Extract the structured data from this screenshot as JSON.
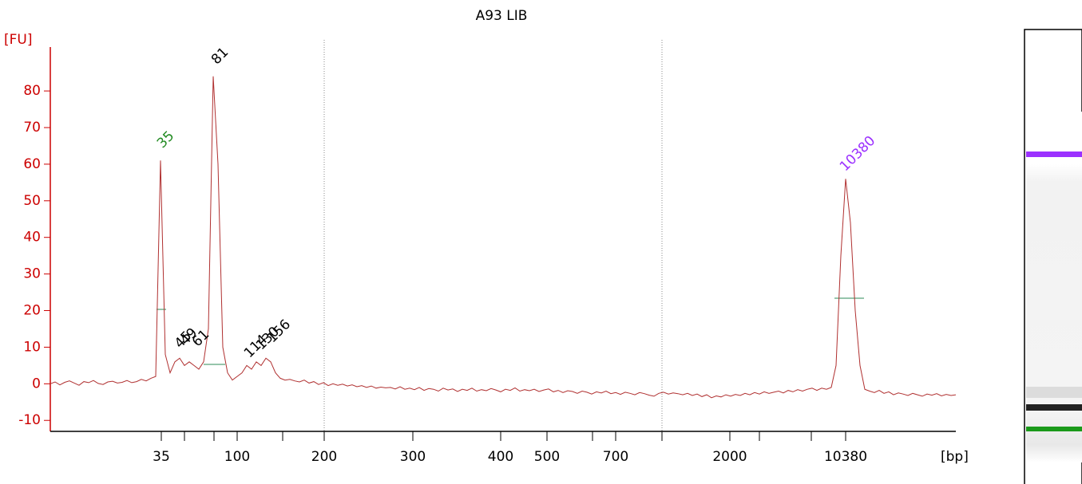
{
  "chart_data": {
    "type": "line",
    "title": "A93 LIB",
    "y_label": "[FU]",
    "x_label": "[bp]",
    "ylim": [
      -13,
      92
    ],
    "yticks": [
      -10,
      0,
      10,
      20,
      30,
      40,
      50,
      60,
      70,
      80
    ],
    "xticks": [
      35,
      100,
      200,
      300,
      400,
      500,
      700,
      2000,
      10380
    ],
    "axis_color": "#cc0000",
    "series": [
      {
        "name": "A93 LIB",
        "color": "#b03030",
        "values": [
          0,
          0.5,
          -0.3,
          0.4,
          0.8,
          0.2,
          -0.4,
          0.6,
          0.3,
          0.9,
          0.1,
          -0.2,
          0.5,
          0.7,
          0.2,
          0.4,
          0.9,
          0.3,
          0.6,
          1.2,
          0.8,
          1.5,
          2,
          61,
          8,
          3,
          6,
          7,
          5,
          6,
          5,
          4,
          6,
          15,
          84,
          60,
          10,
          3,
          1,
          2,
          3,
          5,
          4,
          6,
          5,
          7,
          6,
          3,
          1.5,
          1,
          1.2,
          0.8,
          0.5,
          1,
          0.2,
          0.6,
          -0.2,
          0.3,
          -0.5,
          0,
          -0.4,
          -0.1,
          -0.6,
          -0.3,
          -0.8,
          -0.5,
          -1,
          -0.6,
          -1.2,
          -0.9,
          -1.1,
          -1,
          -1.4,
          -0.8,
          -1.5,
          -1.2,
          -1.6,
          -1,
          -1.8,
          -1.3,
          -1.5,
          -2,
          -1.2,
          -1.7,
          -1.4,
          -2.1,
          -1.5,
          -1.8,
          -1.2,
          -2,
          -1.6,
          -1.9,
          -1.3,
          -1.7,
          -2.2,
          -1.5,
          -1.8,
          -1.1,
          -2,
          -1.6,
          -1.9,
          -1.5,
          -2.1,
          -1.7,
          -1.4,
          -2.2,
          -1.8,
          -2.4,
          -1.9,
          -2.1,
          -2.6,
          -2,
          -2.3,
          -2.8,
          -2.2,
          -2.5,
          -2,
          -2.7,
          -2.4,
          -2.9,
          -2.3,
          -2.6,
          -3,
          -2.4,
          -2.7,
          -3.1,
          -3.4,
          -2.6,
          -2.3,
          -2.8,
          -2.5,
          -2.7,
          -3,
          -2.6,
          -3.2,
          -2.8,
          -3.5,
          -3,
          -3.8,
          -3.3,
          -3.6,
          -3,
          -3.4,
          -2.9,
          -3.2,
          -2.6,
          -3,
          -2.4,
          -2.8,
          -2.2,
          -2.6,
          -2.3,
          -2,
          -2.5,
          -1.8,
          -2.2,
          -1.6,
          -2,
          -1.5,
          -1.2,
          -1.8,
          -1.2,
          -1.5,
          -1,
          5,
          35,
          56,
          44,
          20,
          5,
          -1.5,
          -2,
          -2.4,
          -1.8,
          -2.6,
          -2.2,
          -3,
          -2.5,
          -2.8,
          -3.2,
          -2.6,
          -3,
          -3.4,
          -2.8,
          -3.1,
          -2.7,
          -3.3,
          -2.9,
          -3.2,
          -3
        ]
      }
    ],
    "peaks": [
      {
        "size": 35,
        "color": "#228b22"
      },
      {
        "size": 45,
        "color": "#000000"
      },
      {
        "size": 49,
        "color": "#000000"
      },
      {
        "size": 61,
        "color": "#000000"
      },
      {
        "size": 81,
        "color": "#000000"
      },
      {
        "size": 114,
        "color": "#000000"
      },
      {
        "size": 130,
        "color": "#000000"
      },
      {
        "size": 156,
        "color": "#000000"
      },
      {
        "size": 10380,
        "color": "#9b30ff"
      }
    ]
  }
}
